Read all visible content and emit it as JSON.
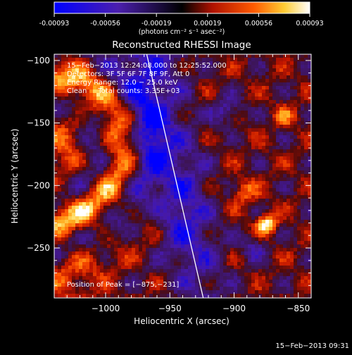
{
  "colorbar": {
    "tick_labels": [
      "-0.00093",
      "-0.00056",
      "-0.00019",
      "0.00019",
      "0.00056",
      "0.00093"
    ],
    "units_label": "(photons cm⁻² s⁻¹ asec⁻²)"
  },
  "chart_data": {
    "type": "heatmap",
    "title": "Reconstructed RHESSI Image",
    "xlabel": "Heliocentric X (arcsec)",
    "ylabel": "Heliocentric Y (arcsec)",
    "xlim": [
      -1040,
      -840
    ],
    "ylim": [
      -290,
      -95
    ],
    "x_ticks": [
      -1000,
      -950,
      -900,
      -850
    ],
    "y_ticks": [
      -100,
      -150,
      -200,
      -250
    ],
    "x_tick_labels": [
      "−1000",
      "−950",
      "−900",
      "−850"
    ],
    "y_tick_labels": [
      "−100",
      "−150",
      "−200",
      "−250"
    ],
    "colorbar_range": [
      -0.00093,
      0.00093
    ],
    "peak": {
      "x": -875,
      "y": -231
    },
    "limb_line": [
      [
        -968,
        -95
      ],
      [
        -924,
        -290
      ]
    ],
    "annotations": [
      "15−Feb−2013 12:24:08.000 to 12:25:52.000",
      "Detectors: 3F 5F 6F 7F 8F 9F, Att 0",
      "Energy Range: 12.0 − 25.0 keV",
      "Clean     Total counts: 3.35E+03"
    ],
    "peak_label": "Position of Peak = [−875,−231]"
  },
  "footer": {
    "timestamp": "15−Feb−2013 09:31"
  }
}
